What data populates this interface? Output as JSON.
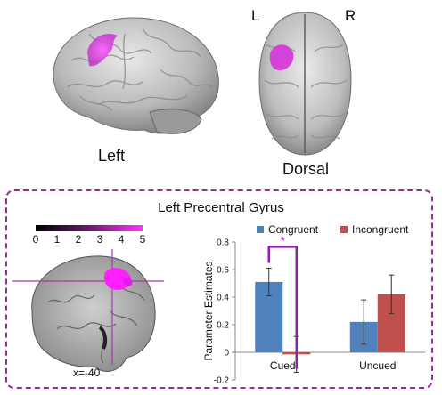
{
  "brain_labels": {
    "left_view": "Left",
    "dorsal_view": "Dorsal",
    "L": "L",
    "R": "R"
  },
  "panel_title": "Left Precentral Gyrus",
  "colorbar": {
    "ticks": [
      "0",
      "1",
      "2",
      "3",
      "4",
      "5"
    ],
    "colors": [
      "#000000",
      "#ff33ff"
    ]
  },
  "slice_coord": "x=-40",
  "colors": {
    "activation": "#e23ce6",
    "frame": "#9b2a9b",
    "congruent": "#4f81bd",
    "incongruent": "#c0504d"
  },
  "chart_data": {
    "type": "bar",
    "categories": [
      "Cued",
      "Uncued"
    ],
    "series": [
      {
        "name": "Congruent",
        "values": [
          0.51,
          0.22
        ],
        "errors": [
          0.1,
          0.16
        ],
        "color": "#4f81bd"
      },
      {
        "name": "Incongruent",
        "values": [
          -0.015,
          0.42
        ],
        "errors": [
          0.13,
          0.14
        ],
        "color": "#c0504d"
      }
    ],
    "ylabel": "Parameter Estimates",
    "ylim": [
      -0.2,
      0.8
    ],
    "yticks": [
      "-0.2",
      "0",
      "0.2",
      "0.4",
      "0.6",
      "0.8"
    ],
    "ytick_values": [
      -0.2,
      0,
      0.2,
      0.4,
      0.6,
      0.8
    ],
    "legend_position": "top",
    "significance": {
      "label": "*",
      "between": [
        "Cued Congruent",
        "Cued Incongruent"
      ]
    }
  }
}
